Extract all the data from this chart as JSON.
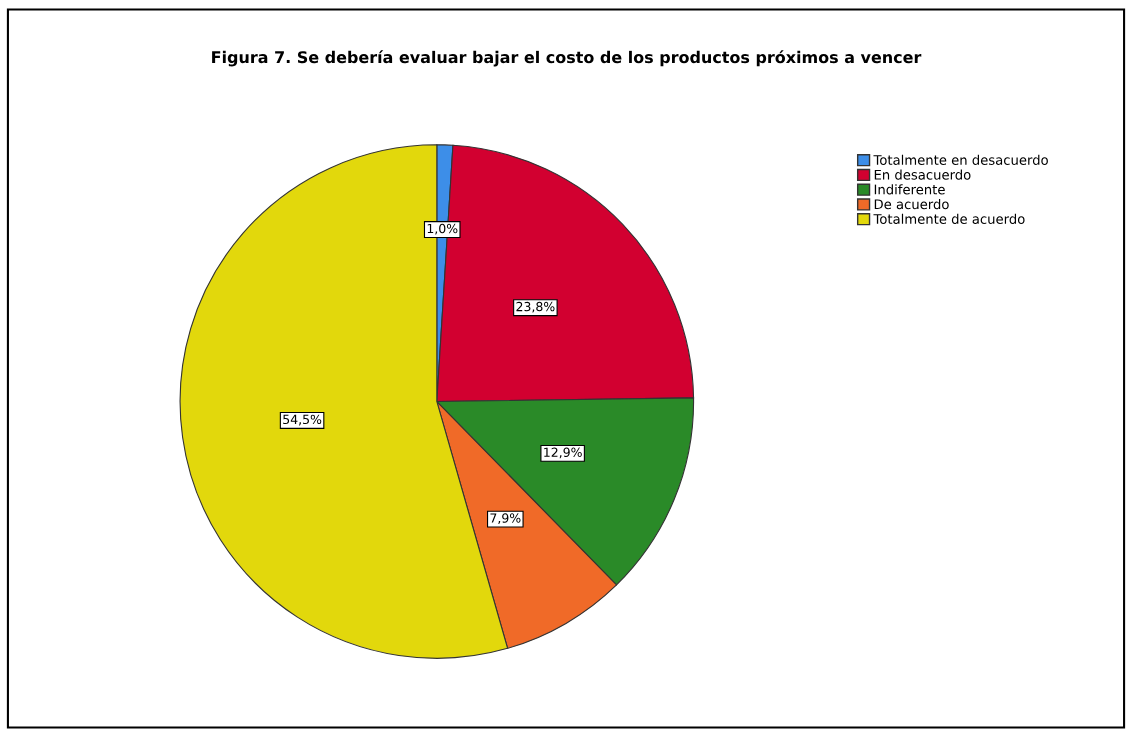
{
  "chart_data": {
    "type": "pie",
    "title": "Figura 7. Se debería evaluar bajar el costo de los productos próximos a vencer",
    "categories": [
      "Totalmente en desacuerdo",
      "En desacuerdo",
      "Indiferente",
      "De acuerdo",
      "Totalmente de acuerdo"
    ],
    "values": [
      1.0,
      23.8,
      12.9,
      7.9,
      54.5
    ],
    "colors": [
      "#3d8ee8",
      "#d20030",
      "#2a8a28",
      "#f06a28",
      "#e2d80c"
    ],
    "value_labels": [
      "1,0%",
      "23,8%",
      "12,9%",
      "7,9%",
      "54,5%"
    ],
    "legend": "top right"
  }
}
